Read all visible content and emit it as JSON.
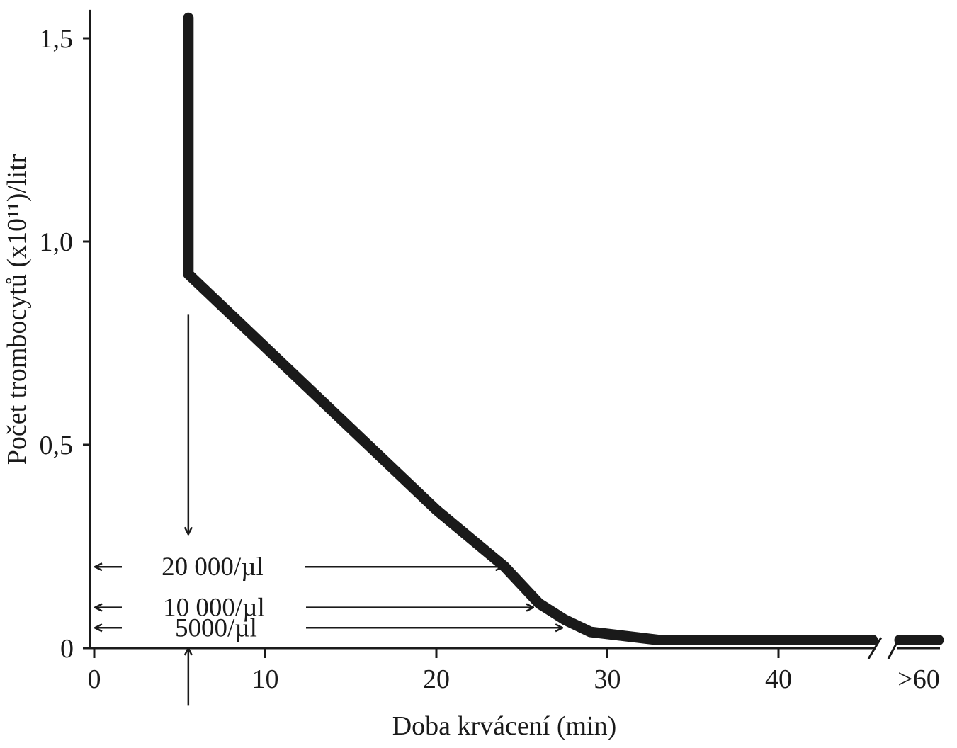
{
  "chart_data": {
    "type": "line",
    "title": "",
    "xlabel": "Doba krvácení (min)",
    "ylabel": "Počet trombocytů (x10¹¹)/litr",
    "xlim": [
      0,
      47
    ],
    "ylim": [
      0,
      1.5
    ],
    "x_ticks": [
      {
        "value": 0,
        "label": "0"
      },
      {
        "value": 10,
        "label": "10"
      },
      {
        "value": 20,
        "label": "20"
      },
      {
        "value": 30,
        "label": "30"
      },
      {
        "value": 40,
        "label": "40"
      }
    ],
    "x_break_label": ">60",
    "y_ticks": [
      {
        "value": 0,
        "label": "0"
      },
      {
        "value": 0.5,
        "label": "0,5"
      },
      {
        "value": 1.0,
        "label": "1,0"
      },
      {
        "value": 1.5,
        "label": "1,5"
      }
    ],
    "series": [
      {
        "points": [
          {
            "x": 5.5,
            "y": 1.55
          },
          {
            "x": 5.5,
            "y": 0.92
          },
          {
            "x": 6,
            "y": 0.9
          },
          {
            "x": 10,
            "y": 0.74
          },
          {
            "x": 15,
            "y": 0.54
          },
          {
            "x": 20,
            "y": 0.34
          },
          {
            "x": 24,
            "y": 0.2
          },
          {
            "x": 26,
            "y": 0.11
          },
          {
            "x": 27.5,
            "y": 0.07
          },
          {
            "x": 29,
            "y": 0.04
          },
          {
            "x": 31,
            "y": 0.03
          },
          {
            "x": 33,
            "y": 0.02
          },
          {
            "x": 45.5,
            "y": 0.02
          }
        ],
        "tail_after_break": [
          {
            "y": 0.02
          }
        ]
      }
    ],
    "annotations": [
      {
        "label": "20 000/µl",
        "y": 0.2,
        "x_end": 24
      },
      {
        "label": "10 000/µl",
        "y": 0.1,
        "x_end": 25.8
      },
      {
        "label": "5000/µl",
        "y": 0.05,
        "x_end": 27.5
      }
    ],
    "marker_arrows": [
      {
        "x": 5.5,
        "from_y": 0.82,
        "to_y": 0.28
      },
      {
        "x": 5.5,
        "from_y": -0.14,
        "to_y": 0
      }
    ],
    "grid": false,
    "legend": "none"
  }
}
